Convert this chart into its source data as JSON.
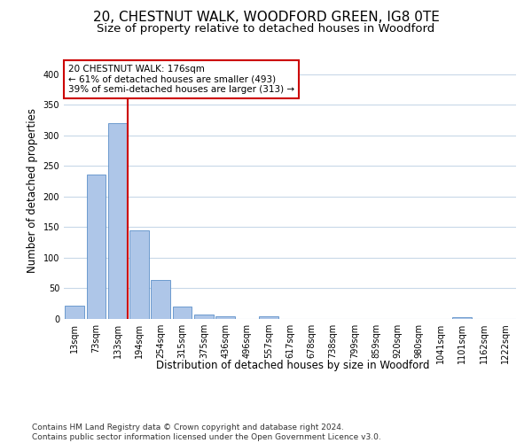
{
  "title": "20, CHESTNUT WALK, WOODFORD GREEN, IG8 0TE",
  "subtitle": "Size of property relative to detached houses in Woodford",
  "xlabel": "Distribution of detached houses by size in Woodford",
  "ylabel": "Number of detached properties",
  "bar_labels": [
    "13sqm",
    "73sqm",
    "133sqm",
    "194sqm",
    "254sqm",
    "315sqm",
    "375sqm",
    "436sqm",
    "496sqm",
    "557sqm",
    "617sqm",
    "678sqm",
    "738sqm",
    "799sqm",
    "859sqm",
    "920sqm",
    "980sqm",
    "1041sqm",
    "1101sqm",
    "1162sqm",
    "1222sqm"
  ],
  "bar_values": [
    22,
    236,
    320,
    145,
    64,
    21,
    7,
    4,
    0,
    4,
    0,
    0,
    0,
    0,
    0,
    0,
    0,
    0,
    3,
    0,
    0
  ],
  "bar_color": "#aec6e8",
  "bar_edge_color": "#5b8fc8",
  "vline_color": "#cc0000",
  "annotation_text": "20 CHESTNUT WALK: 176sqm\n← 61% of detached houses are smaller (493)\n39% of semi-detached houses are larger (313) →",
  "annotation_box_color": "#ffffff",
  "annotation_box_edge": "#cc0000",
  "ylim": [
    0,
    420
  ],
  "yticks": [
    0,
    50,
    100,
    150,
    200,
    250,
    300,
    350,
    400
  ],
  "footer": "Contains HM Land Registry data © Crown copyright and database right 2024.\nContains public sector information licensed under the Open Government Licence v3.0.",
  "bg_color": "#ffffff",
  "grid_color": "#c8d8e8",
  "title_fontsize": 11,
  "subtitle_fontsize": 9.5,
  "axis_label_fontsize": 8.5,
  "tick_fontsize": 7,
  "footer_fontsize": 6.5
}
